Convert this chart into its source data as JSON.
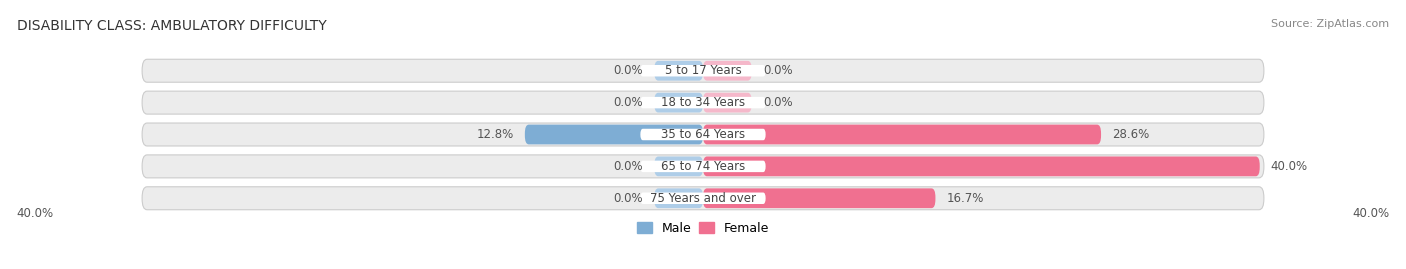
{
  "title": "DISABILITY CLASS: AMBULATORY DIFFICULTY",
  "source": "Source: ZipAtlas.com",
  "categories": [
    "5 to 17 Years",
    "18 to 34 Years",
    "35 to 64 Years",
    "65 to 74 Years",
    "75 Years and over"
  ],
  "male_values": [
    0.0,
    0.0,
    12.8,
    0.0,
    0.0
  ],
  "female_values": [
    0.0,
    0.0,
    28.6,
    40.0,
    16.7
  ],
  "male_color": "#7eadd4",
  "female_color": "#f07090",
  "male_color_light": "#aecde8",
  "female_color_light": "#f5b8ca",
  "bar_bg_color": "#ececec",
  "bar_bg_shadow": "#d8d8d8",
  "max_val": 40.0,
  "x_min_label": "40.0%",
  "x_max_label": "40.0%",
  "title_fontsize": 10,
  "source_fontsize": 8,
  "label_fontsize": 8.5,
  "category_fontsize": 8.5,
  "legend_fontsize": 9,
  "background_color": "#ffffff",
  "center_label_bg": "#ffffff"
}
